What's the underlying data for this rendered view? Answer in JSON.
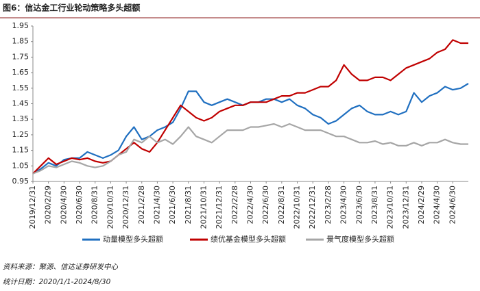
{
  "chart_data": {
    "type": "line",
    "title": "图6：信达金工行业轮动策略多头超额",
    "source": "资料来源：聚源、信达证券研发中心",
    "date_range": "统计日期：2020/1/1-2024/8/30",
    "categories": [
      "2019/12/31",
      null,
      "2020/2/29",
      null,
      "2020/4/30",
      null,
      "2020/6/30",
      null,
      "2020/8/31",
      null,
      "2020/10/31",
      null,
      "2020/12/31",
      null,
      "2021/2/28",
      null,
      "2021/4/30",
      null,
      "2021/6/30",
      null,
      "2021/8/31",
      null,
      "2021/10/31",
      null,
      "2021/12/31",
      null,
      "2022/2/28",
      null,
      "2022/4/30",
      null,
      "2022/6/30",
      null,
      "2022/8/31",
      null,
      "2022/10/31",
      null,
      "2022/12/31",
      null,
      "2023/2/28",
      null,
      "2023/4/30",
      null,
      "2023/6/30",
      null,
      "2023/8/31",
      null,
      "2023/10/31",
      null,
      "2023/12/31",
      null,
      "2024/2/29",
      null,
      "2024/4/30",
      null,
      "2024/6/30",
      null,
      null
    ],
    "series": [
      {
        "name": "动量模型多头超额",
        "color": "#1f6fc0",
        "values": [
          1.0,
          1.03,
          1.07,
          1.05,
          1.09,
          1.1,
          1.1,
          1.14,
          1.12,
          1.1,
          1.12,
          1.15,
          1.24,
          1.3,
          1.22,
          1.24,
          1.28,
          1.3,
          1.33,
          1.42,
          1.53,
          1.53,
          1.46,
          1.44,
          1.46,
          1.48,
          1.46,
          1.44,
          1.46,
          1.46,
          1.48,
          1.48,
          1.46,
          1.48,
          1.44,
          1.42,
          1.38,
          1.36,
          1.32,
          1.34,
          1.38,
          1.42,
          1.44,
          1.4,
          1.38,
          1.38,
          1.4,
          1.38,
          1.4,
          1.52,
          1.46,
          1.5,
          1.52,
          1.56,
          1.54,
          1.55,
          1.58
        ]
      },
      {
        "name": "绩优基金模型多头超额",
        "color": "#c00000",
        "values": [
          1.0,
          1.05,
          1.1,
          1.06,
          1.08,
          1.1,
          1.09,
          1.1,
          1.08,
          1.07,
          1.08,
          1.12,
          1.16,
          1.2,
          1.16,
          1.14,
          1.2,
          1.28,
          1.36,
          1.44,
          1.4,
          1.36,
          1.34,
          1.36,
          1.4,
          1.42,
          1.44,
          1.44,
          1.46,
          1.46,
          1.46,
          1.48,
          1.5,
          1.5,
          1.52,
          1.52,
          1.54,
          1.56,
          1.56,
          1.6,
          1.7,
          1.64,
          1.6,
          1.6,
          1.62,
          1.62,
          1.6,
          1.64,
          1.68,
          1.7,
          1.72,
          1.74,
          1.78,
          1.8,
          1.86,
          1.84,
          1.84
        ]
      },
      {
        "name": "景气度模型多头超额",
        "color": "#a6a6a6",
        "values": [
          1.0,
          1.02,
          1.05,
          1.04,
          1.06,
          1.08,
          1.07,
          1.05,
          1.04,
          1.05,
          1.08,
          1.12,
          1.14,
          1.22,
          1.2,
          1.24,
          1.2,
          1.22,
          1.19,
          1.24,
          1.3,
          1.24,
          1.22,
          1.2,
          1.24,
          1.28,
          1.28,
          1.28,
          1.3,
          1.3,
          1.31,
          1.32,
          1.3,
          1.32,
          1.3,
          1.28,
          1.28,
          1.28,
          1.26,
          1.24,
          1.24,
          1.22,
          1.2,
          1.2,
          1.21,
          1.19,
          1.2,
          1.18,
          1.18,
          1.2,
          1.18,
          1.2,
          1.2,
          1.22,
          1.2,
          1.19,
          1.19
        ]
      }
    ],
    "ylim": [
      0.95,
      1.95
    ],
    "yticks": [
      0.95,
      1.05,
      1.15,
      1.25,
      1.35,
      1.45,
      1.55,
      1.65,
      1.75,
      1.85,
      1.95
    ],
    "grid": false,
    "legend": "bottom"
  }
}
